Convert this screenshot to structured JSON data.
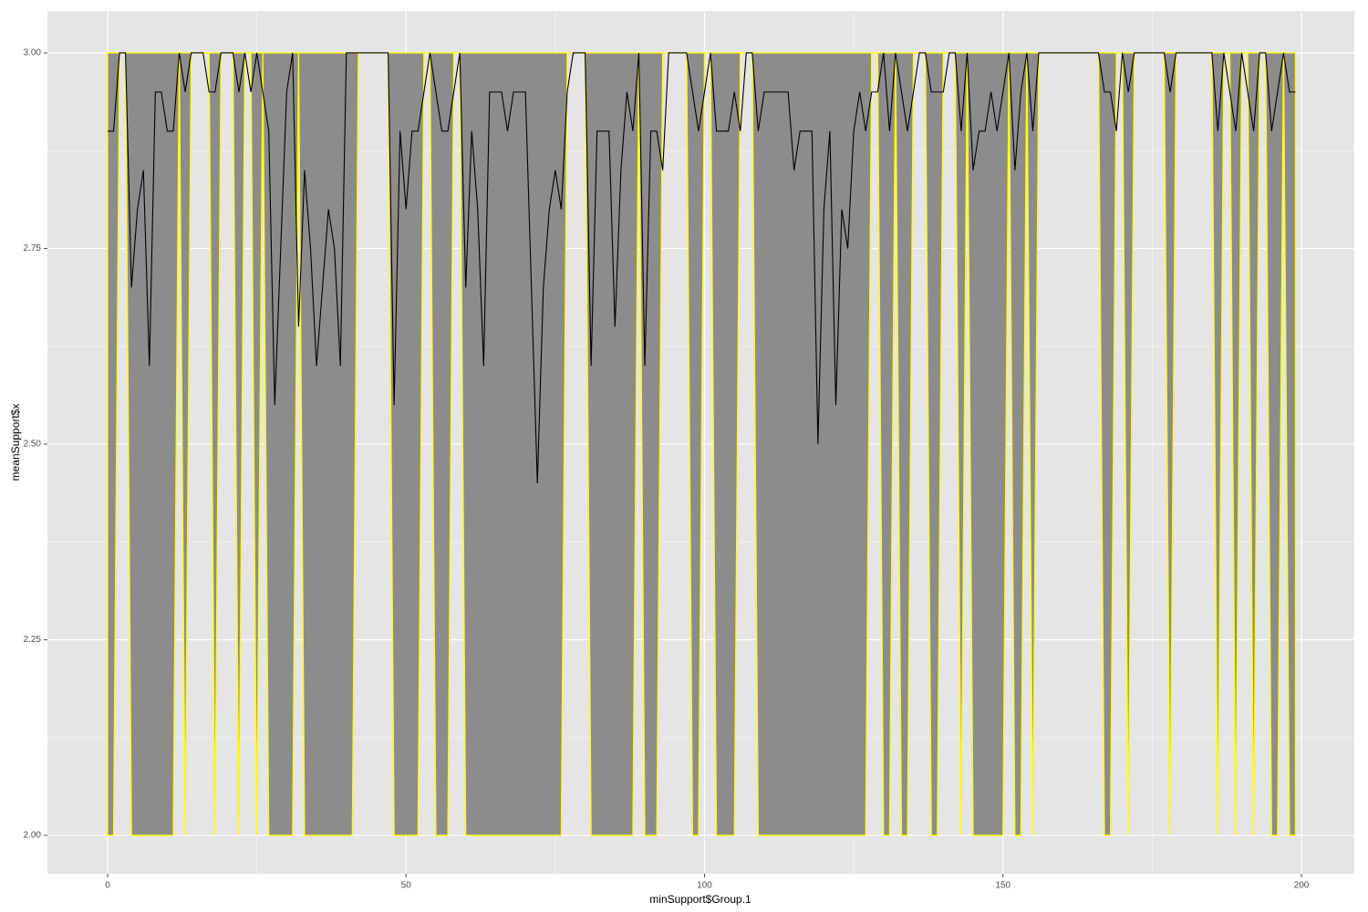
{
  "chart_data": {
    "type": "ribbon-line",
    "x_label": "minSupport$Group.1",
    "y_label": "meanSupport$x",
    "x": [
      0,
      1,
      2,
      3,
      4,
      5,
      6,
      7,
      8,
      9,
      10,
      11,
      12,
      13,
      14,
      15,
      16,
      17,
      18,
      19,
      20,
      21,
      22,
      23,
      24,
      25,
      26,
      27,
      28,
      29,
      30,
      31,
      32,
      33,
      34,
      35,
      36,
      37,
      38,
      39,
      40,
      41,
      42,
      43,
      44,
      45,
      46,
      47,
      48,
      49,
      50,
      51,
      52,
      53,
      54,
      55,
      56,
      57,
      58,
      59,
      60,
      61,
      62,
      63,
      64,
      65,
      66,
      67,
      68,
      69,
      70,
      71,
      72,
      73,
      74,
      75,
      76,
      77,
      78,
      79,
      80,
      81,
      82,
      83,
      84,
      85,
      86,
      87,
      88,
      89,
      90,
      91,
      92,
      93,
      94,
      95,
      96,
      97,
      98,
      99,
      100,
      101,
      102,
      103,
      104,
      105,
      106,
      107,
      108,
      109,
      110,
      111,
      112,
      113,
      114,
      115,
      116,
      117,
      118,
      119,
      120,
      121,
      122,
      123,
      124,
      125,
      126,
      127,
      128,
      129,
      130,
      131,
      132,
      133,
      134,
      135,
      136,
      137,
      138,
      139,
      140,
      141,
      142,
      143,
      144,
      145,
      146,
      147,
      148,
      149,
      150,
      151,
      152,
      153,
      154,
      155,
      156,
      157,
      158,
      159,
      160,
      161,
      162,
      163,
      164,
      165,
      166,
      167,
      168,
      169,
      170,
      171,
      172,
      173,
      174,
      175,
      176,
      177,
      178,
      179,
      180,
      181,
      182,
      183,
      184,
      185,
      186,
      187,
      188,
      189,
      190,
      191,
      192,
      193,
      194,
      195,
      196,
      197,
      198,
      199
    ],
    "ribbon": {
      "fill": "#8c8c8c",
      "stroke": "#ffff00",
      "ymin": [
        2,
        2,
        3,
        3,
        2,
        2,
        2,
        2,
        2,
        2,
        2,
        2,
        3,
        2,
        3,
        3,
        3,
        3,
        2,
        3,
        3,
        3,
        2,
        3,
        3,
        2,
        3,
        2,
        2,
        2,
        2,
        2,
        3,
        2,
        2,
        2,
        2,
        2,
        2,
        2,
        2,
        2,
        3,
        3,
        3,
        3,
        3,
        3,
        2,
        2,
        2,
        2,
        2,
        3,
        3,
        2,
        2,
        2,
        3,
        3,
        2,
        2,
        2,
        2,
        2,
        2,
        2,
        2,
        2,
        2,
        2,
        2,
        2,
        2,
        2,
        2,
        2,
        3,
        3,
        3,
        3,
        2,
        2,
        2,
        2,
        2,
        2,
        2,
        2,
        3,
        2,
        2,
        2,
        3,
        3,
        3,
        3,
        3,
        2,
        2,
        3,
        3,
        2,
        2,
        2,
        2,
        3,
        3,
        3,
        2,
        2,
        2,
        2,
        2,
        2,
        2,
        2,
        2,
        2,
        2,
        2,
        2,
        2,
        2,
        2,
        2,
        2,
        2,
        3,
        3,
        2,
        2,
        3,
        2,
        2,
        3,
        3,
        3,
        2,
        2,
        3,
        3,
        3,
        2,
        3,
        2,
        2,
        2,
        2,
        2,
        2,
        3,
        2,
        2,
        3,
        2,
        3,
        3,
        3,
        3,
        3,
        3,
        3,
        3,
        3,
        3,
        3,
        2,
        2,
        3,
        3,
        2,
        3,
        3,
        3,
        3,
        3,
        3,
        2,
        3,
        3,
        3,
        3,
        3,
        3,
        3,
        2,
        3,
        3,
        2,
        3,
        3,
        2,
        3,
        3,
        2,
        2,
        3,
        2,
        2
      ],
      "ymax": [
        3,
        3,
        3,
        3,
        3,
        3,
        3,
        3,
        3,
        3,
        3,
        3,
        3,
        3,
        3,
        3,
        3,
        3,
        3,
        3,
        3,
        3,
        3,
        3,
        3,
        3,
        3,
        3,
        3,
        3,
        3,
        3,
        3,
        3,
        3,
        3,
        3,
        3,
        3,
        3,
        3,
        3,
        3,
        3,
        3,
        3,
        3,
        3,
        3,
        3,
        3,
        3,
        3,
        3,
        3,
        3,
        3,
        3,
        3,
        3,
        3,
        3,
        3,
        3,
        3,
        3,
        3,
        3,
        3,
        3,
        3,
        3,
        3,
        3,
        3,
        3,
        3,
        3,
        3,
        3,
        3,
        3,
        3,
        3,
        3,
        3,
        3,
        3,
        3,
        3,
        3,
        3,
        3,
        3,
        3,
        3,
        3,
        3,
        3,
        3,
        3,
        3,
        3,
        3,
        3,
        3,
        3,
        3,
        3,
        3,
        3,
        3,
        3,
        3,
        3,
        3,
        3,
        3,
        3,
        3,
        3,
        3,
        3,
        3,
        3,
        3,
        3,
        3,
        3,
        3,
        3,
        3,
        3,
        3,
        3,
        3,
        3,
        3,
        3,
        3,
        3,
        3,
        3,
        3,
        3,
        3,
        3,
        3,
        3,
        3,
        3,
        3,
        3,
        3,
        3,
        3,
        3,
        3,
        3,
        3,
        3,
        3,
        3,
        3,
        3,
        3,
        3,
        3,
        3,
        3,
        3,
        3,
        3,
        3,
        3,
        3,
        3,
        3,
        3,
        3,
        3,
        3,
        3,
        3,
        3,
        3,
        3,
        3,
        3,
        3,
        3,
        3,
        3,
        3,
        3,
        3,
        3,
        3,
        3,
        3
      ]
    },
    "series": [
      {
        "color": "#000000",
        "values": [
          2.9,
          2.9,
          3,
          3,
          2.7,
          2.8,
          2.85,
          2.6,
          2.95,
          2.95,
          2.9,
          2.9,
          3,
          2.95,
          3,
          3,
          3,
          2.95,
          2.95,
          3,
          3,
          3,
          2.95,
          3,
          2.95,
          3,
          2.95,
          2.9,
          2.55,
          2.75,
          2.95,
          3,
          2.65,
          2.85,
          2.75,
          2.6,
          2.7,
          2.8,
          2.75,
          2.6,
          3,
          3,
          3,
          3,
          3,
          3,
          3,
          3,
          2.55,
          2.9,
          2.8,
          2.9,
          2.9,
          2.95,
          3,
          2.95,
          2.9,
          2.9,
          2.95,
          3,
          2.7,
          2.9,
          2.8,
          2.6,
          2.95,
          2.95,
          2.95,
          2.9,
          2.95,
          2.95,
          2.95,
          2.7,
          2.45,
          2.7,
          2.8,
          2.85,
          2.8,
          2.95,
          3,
          3,
          3,
          2.6,
          2.9,
          2.9,
          2.9,
          2.65,
          2.85,
          2.95,
          2.9,
          3,
          2.6,
          2.9,
          2.9,
          2.85,
          3,
          3,
          3,
          3,
          2.95,
          2.9,
          2.95,
          3,
          2.9,
          2.9,
          2.9,
          2.95,
          2.9,
          3,
          3,
          2.9,
          2.95,
          2.95,
          2.95,
          2.95,
          2.95,
          2.85,
          2.9,
          2.9,
          2.9,
          2.5,
          2.8,
          2.9,
          2.55,
          2.8,
          2.75,
          2.9,
          2.95,
          2.9,
          2.95,
          2.95,
          3,
          2.9,
          3,
          2.95,
          2.9,
          2.95,
          3,
          3,
          2.95,
          2.95,
          2.95,
          3,
          3,
          2.9,
          3,
          2.85,
          2.9,
          2.9,
          2.95,
          2.9,
          2.95,
          3,
          2.85,
          2.95,
          3,
          2.9,
          3,
          3,
          3,
          3,
          3,
          3,
          3,
          3,
          3,
          3,
          3,
          2.95,
          2.95,
          2.9,
          3,
          2.95,
          3,
          3,
          3,
          3,
          3,
          3,
          2.95,
          3,
          3,
          3,
          3,
          3,
          3,
          3,
          2.9,
          3,
          2.95,
          2.9,
          3,
          2.95,
          2.9,
          3,
          3,
          2.9,
          2.95,
          3,
          2.95,
          2.95
        ]
      }
    ],
    "xlim": [
      -10.08,
      208.86
    ],
    "ylim": [
      1.951,
      3.0536
    ],
    "xticks": [
      0,
      50,
      100,
      150,
      200
    ],
    "yticks": [
      {
        "value": 2,
        "label": "2.00"
      },
      {
        "value": 2.25,
        "label": "2.25"
      },
      {
        "value": 2.5,
        "label": "2.50"
      },
      {
        "value": 2.75,
        "label": "2.75"
      },
      {
        "value": 3,
        "label": "3.00"
      }
    ],
    "grid": true
  }
}
